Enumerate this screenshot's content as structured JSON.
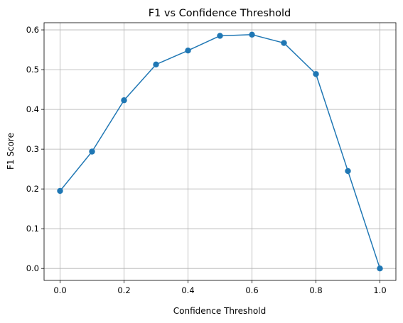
{
  "chart_data": {
    "type": "line",
    "title": "F1 vs Confidence Threshold",
    "xlabel": "Confidence Threshold",
    "ylabel": "F1 Score",
    "xlim": [
      -0.05,
      1.05
    ],
    "ylim": [
      -0.03,
      0.618
    ],
    "xticks": [
      0.0,
      0.2,
      0.4,
      0.6,
      0.8,
      1.0
    ],
    "xtick_labels": [
      "0.0",
      "0.2",
      "0.4",
      "0.6",
      "0.8",
      "1.0"
    ],
    "yticks": [
      0.0,
      0.1,
      0.2,
      0.3,
      0.4,
      0.5,
      0.6
    ],
    "ytick_labels": [
      "0.0",
      "0.1",
      "0.2",
      "0.3",
      "0.4",
      "0.5",
      "0.6"
    ],
    "grid": true,
    "series": [
      {
        "color": "#1f77b4",
        "marker": "circle",
        "x": [
          0.0,
          0.1,
          0.2,
          0.3,
          0.4,
          0.5,
          0.6,
          0.7,
          0.8,
          0.9,
          1.0
        ],
        "y": [
          0.195,
          0.294,
          0.423,
          0.513,
          0.548,
          0.585,
          0.588,
          0.567,
          0.489,
          0.245,
          0.0
        ]
      }
    ]
  }
}
